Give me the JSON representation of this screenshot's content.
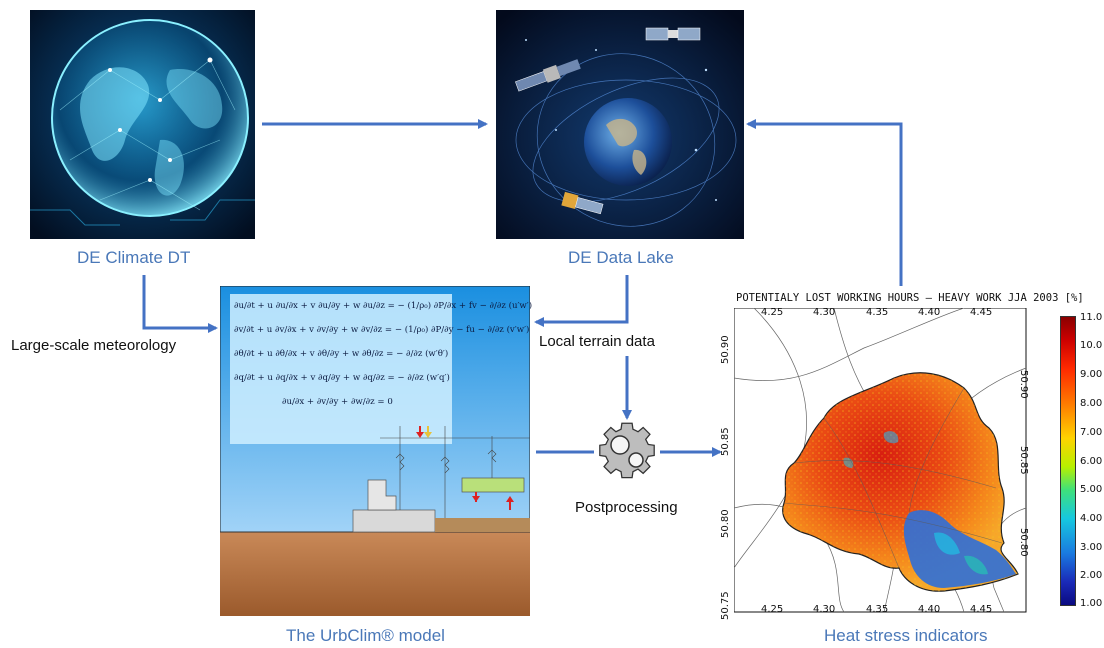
{
  "nodes": {
    "climate_dt": {
      "caption": "DE Climate DT"
    },
    "data_lake": {
      "caption": "DE Data Lake"
    },
    "urbclim": {
      "caption": "The UrbClim® model"
    },
    "heat_stress": {
      "caption": "Heat stress indicators"
    }
  },
  "edge_labels": {
    "meteorology": "Large-scale meteorology",
    "terrain": "Local terrain data",
    "postprocessing": "Postprocessing"
  },
  "equations": [
    "∂u/∂t + u ∂u/∂x + v ∂u/∂y + w ∂u/∂z = − (1/ρ₀) ∂P/∂x + fv − ∂/∂z (u′w′)",
    "∂v/∂t + u ∂v/∂x + v ∂v/∂y + w ∂v/∂z = − (1/ρ₀) ∂P/∂y − fu − ∂/∂z (v′w′)",
    "∂θ/∂t + u ∂θ/∂x + v ∂θ/∂y + w ∂θ/∂z = − ∂/∂z (w′θ′)",
    "∂q/∂t + u ∂q/∂x + v ∂q/∂y + w ∂q/∂z = − ∂/∂z (w′q′)",
    "∂u/∂x + ∂v/∂y + ∂w/∂z = 0"
  ],
  "map": {
    "title": "POTENTIALY LOST WORKING HOURS – HEAVY WORK JJA 2003 [%]",
    "lon_ticks": [
      "4.25",
      "4.30",
      "4.35",
      "4.40",
      "4.45"
    ],
    "lat_ticks": [
      "50.90",
      "50.85",
      "50.80"
    ],
    "lat_ticks_left": [
      "50.90",
      "50.85",
      "50.80",
      "50.75"
    ],
    "colorbar": [
      "11.0",
      "10.0",
      "9.00",
      "8.00",
      "7.00",
      "6.00",
      "5.00",
      "4.00",
      "3.00",
      "2.00",
      "1.00"
    ],
    "colors": {
      "high": "#c41a0e",
      "mid": "#f06a12",
      "low": "#2a66d6"
    }
  },
  "colors": {
    "arrow": "#4472c4",
    "caption": "#4a78b8"
  },
  "icons": {
    "process": "gear-icon"
  }
}
